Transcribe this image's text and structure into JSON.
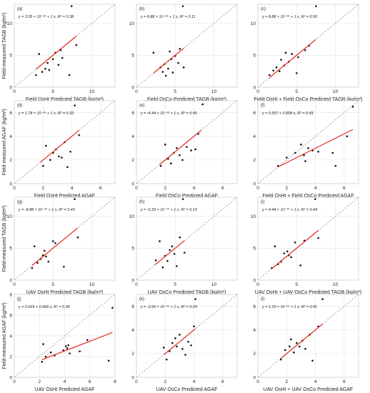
{
  "colors": {
    "points": "#111111",
    "fit": "#e8261c",
    "ref": "#9a9a9a",
    "grid": "#e9e9e9",
    "panel_border": "#cfcfcf"
  },
  "chart_data": [
    {
      "type": "scatter",
      "tag": "(a)",
      "equation": "y = 3.55 × 10⁻¹⁶ + 1 x",
      "r2": "R² = 0.38",
      "xlabel": "Field OsHt Predicted TAGB (kg/m²)",
      "ylabel": "Field-measured TAGB (kg/m²)",
      "xlim": [
        0,
        13
      ],
      "ylim": [
        0,
        13
      ],
      "xticks": [
        0,
        5,
        10
      ],
      "yticks": [
        0,
        5,
        10
      ],
      "points": [
        [
          2.8,
          1.9
        ],
        [
          3.2,
          5.2
        ],
        [
          3.6,
          2.4
        ],
        [
          4.0,
          2.9
        ],
        [
          4.3,
          3.8
        ],
        [
          4.5,
          2.7
        ],
        [
          5.0,
          4.4
        ],
        [
          5.3,
          5.4
        ],
        [
          5.7,
          3.5
        ],
        [
          6.0,
          5.8
        ],
        [
          6.2,
          4.6
        ],
        [
          7.1,
          1.9
        ],
        [
          7.4,
          12.7
        ],
        [
          8.0,
          6.6
        ]
      ],
      "fit": [
        [
          2.8,
          2.8
        ],
        [
          8.0,
          8.0
        ]
      ]
    },
    {
      "type": "scatter",
      "tag": "(b)",
      "equation": "y = 8.88 × 10⁻¹⁶ + 1 x",
      "r2": "R² = 0.11",
      "xlabel": "Field OsCo Predicted TAGB (kg/m²)",
      "ylabel": "",
      "xlim": [
        0,
        13
      ],
      "ylim": [
        0,
        13
      ],
      "xticks": [
        0,
        5,
        10
      ],
      "yticks": [
        0,
        5,
        10
      ],
      "points": [
        [
          2.2,
          5.4
        ],
        [
          3.1,
          3.1
        ],
        [
          3.4,
          2.4
        ],
        [
          3.6,
          3.6
        ],
        [
          3.8,
          1.8
        ],
        [
          4.1,
          2.9
        ],
        [
          4.3,
          5.6
        ],
        [
          4.5,
          4.4
        ],
        [
          4.7,
          2.3
        ],
        [
          5.0,
          4.9
        ],
        [
          5.4,
          3.8
        ],
        [
          5.6,
          6.0
        ],
        [
          6.0,
          12.7
        ],
        [
          6.1,
          3.1
        ]
      ],
      "fit": [
        [
          2.2,
          2.2
        ],
        [
          6.1,
          6.1
        ]
      ]
    },
    {
      "type": "scatter",
      "tag": "(c)",
      "equation": "y = 8.88 × 10⁻¹⁶ + 1 x",
      "r2": "R² = 0.50",
      "xlabel": "Field OsHt + Field OsCo Predicted TAGB (kg/m²)",
      "ylabel": "",
      "xlim": [
        0,
        13
      ],
      "ylim": [
        0,
        13
      ],
      "xticks": [
        0,
        5,
        10
      ],
      "yticks": [
        0,
        5,
        10
      ],
      "points": [
        [
          1.5,
          1.9
        ],
        [
          2.0,
          2.6
        ],
        [
          2.4,
          3.1
        ],
        [
          2.8,
          2.5
        ],
        [
          3.0,
          4.3
        ],
        [
          3.4,
          3.4
        ],
        [
          3.6,
          5.4
        ],
        [
          4.0,
          4.0
        ],
        [
          4.4,
          5.2
        ],
        [
          5.0,
          2.2
        ],
        [
          5.2,
          4.7
        ],
        [
          6.1,
          5.8
        ],
        [
          6.6,
          6.5
        ],
        [
          7.5,
          12.7
        ]
      ],
      "fit": [
        [
          1.5,
          1.5
        ],
        [
          7.5,
          7.5
        ]
      ]
    },
    {
      "type": "scatter",
      "tag": "(d)",
      "equation": "y = 1.78 × 10⁻¹⁵ + 1 x",
      "r2": "R² = 0.33",
      "xlabel": "Field OsHt Predicted AGAF",
      "ylabel": "Field-measured AGAF (kg/m²)",
      "xlim": [
        0,
        7
      ],
      "ylim": [
        0,
        7
      ],
      "xticks": [
        0,
        2,
        4,
        6
      ],
      "yticks": [
        0,
        2,
        4,
        6
      ],
      "points": [
        [
          2.0,
          1.5
        ],
        [
          2.2,
          3.2
        ],
        [
          2.5,
          2.0
        ],
        [
          2.7,
          2.6
        ],
        [
          2.9,
          2.9
        ],
        [
          3.1,
          2.3
        ],
        [
          3.3,
          2.2
        ],
        [
          3.5,
          3.5
        ],
        [
          3.7,
          1.4
        ],
        [
          3.9,
          2.7
        ],
        [
          4.2,
          6.6
        ],
        [
          4.5,
          4.1
        ]
      ],
      "fit": [
        [
          1.8,
          1.8
        ],
        [
          4.5,
          4.5
        ]
      ]
    },
    {
      "type": "scatter",
      "tag": "(e)",
      "equation": "y = -4.44 × 10⁻¹⁶ + 1 x",
      "r2": "R² = 0.45",
      "xlabel": "Field OsCo Predicted AGAF",
      "ylabel": "",
      "xlim": [
        0,
        7
      ],
      "ylim": [
        0,
        7
      ],
      "xticks": [
        0,
        2,
        4,
        6
      ],
      "yticks": [
        0,
        2,
        4,
        6
      ],
      "points": [
        [
          1.7,
          1.5
        ],
        [
          2.0,
          3.3
        ],
        [
          2.2,
          2.1
        ],
        [
          2.4,
          1.7
        ],
        [
          2.6,
          2.6
        ],
        [
          2.8,
          3.0
        ],
        [
          3.0,
          2.4
        ],
        [
          3.2,
          2.0
        ],
        [
          3.5,
          3.1
        ],
        [
          3.8,
          2.8
        ],
        [
          4.1,
          2.9
        ],
        [
          4.3,
          4.2
        ],
        [
          4.6,
          6.7
        ]
      ],
      "fit": [
        [
          1.6,
          1.6
        ],
        [
          4.5,
          4.5
        ]
      ]
    },
    {
      "type": "scatter",
      "tag": "(f)",
      "equation": "y = 0.557 + 0.608 x",
      "r2": "R² = 0.49",
      "xlabel": "Field OsHt + Field OsCo Predicted AGAF",
      "ylabel": "",
      "xlim": [
        0,
        7
      ],
      "ylim": [
        0,
        7
      ],
      "xticks": [
        0,
        2,
        4,
        6
      ],
      "yticks": [
        0,
        2,
        4,
        6
      ],
      "points": [
        [
          1.4,
          1.5
        ],
        [
          2.0,
          2.2
        ],
        [
          2.6,
          2.6
        ],
        [
          3.0,
          3.3
        ],
        [
          3.2,
          2.4
        ],
        [
          3.3,
          1.9
        ],
        [
          3.5,
          3.0
        ],
        [
          3.8,
          2.8
        ],
        [
          4.2,
          2.7
        ],
        [
          5.2,
          2.6
        ],
        [
          5.4,
          1.5
        ],
        [
          6.2,
          4.0
        ],
        [
          6.6,
          6.5
        ]
      ],
      "fit": [
        [
          1.4,
          1.41
        ],
        [
          6.6,
          4.57
        ]
      ]
    },
    {
      "type": "scatter",
      "tag": "(g)",
      "equation": "y = -8.88 × 10⁻¹⁶ + 1 x",
      "r2": "R² = 0.43",
      "xlabel": "UAV OsHt Predicted TAGB (kg/m²)",
      "ylabel": "Field-measured TAGB (kg/m²)",
      "xlim": [
        0,
        13
      ],
      "ylim": [
        0,
        13
      ],
      "xticks": [
        0,
        5,
        10
      ],
      "yticks": [
        0,
        5,
        10
      ],
      "points": [
        [
          2.3,
          1.9
        ],
        [
          2.6,
          5.3
        ],
        [
          3.0,
          2.7
        ],
        [
          3.4,
          3.3
        ],
        [
          3.7,
          3.9
        ],
        [
          3.9,
          4.6
        ],
        [
          4.1,
          3.7
        ],
        [
          4.4,
          2.9
        ],
        [
          5.0,
          6.1
        ],
        [
          5.3,
          5.8
        ],
        [
          6.4,
          2.1
        ],
        [
          7.8,
          12.7
        ],
        [
          8.2,
          6.7
        ]
      ],
      "fit": [
        [
          2.3,
          2.3
        ],
        [
          8.2,
          8.2
        ]
      ]
    },
    {
      "type": "scatter",
      "tag": "(h)",
      "equation": "y = -5.33 × 10⁻¹⁶ + 1 x",
      "r2": "R² = 0.19",
      "xlabel": "UAV OsCo Predicted TAGB (kg/m²)",
      "ylabel": "",
      "xlim": [
        0,
        13
      ],
      "ylim": [
        0,
        13
      ],
      "xticks": [
        0,
        5,
        10
      ],
      "yticks": [
        0,
        5,
        10
      ],
      "points": [
        [
          2.5,
          3.1
        ],
        [
          3.0,
          6.1
        ],
        [
          3.4,
          2.0
        ],
        [
          3.7,
          3.8
        ],
        [
          4.0,
          3.0
        ],
        [
          4.3,
          4.7
        ],
        [
          4.6,
          5.3
        ],
        [
          4.9,
          4.1
        ],
        [
          5.2,
          2.2
        ],
        [
          5.6,
          6.7
        ],
        [
          6.0,
          12.7
        ],
        [
          6.2,
          4.3
        ]
      ],
      "fit": [
        [
          2.4,
          2.4
        ],
        [
          6.2,
          6.2
        ]
      ]
    },
    {
      "type": "scatter",
      "tag": "(i)",
      "equation": "y = 4.44 × 10⁻¹⁶ + 1 x",
      "r2": "R² = 0.44",
      "xlabel": "UAV OsHt + UAV OsCo Predicted TAGB (kg/m²)",
      "ylabel": "",
      "xlim": [
        0,
        13
      ],
      "ylim": [
        0,
        13
      ],
      "xticks": [
        0,
        5,
        10
      ],
      "yticks": [
        0,
        5,
        10
      ],
      "points": [
        [
          1.8,
          1.9
        ],
        [
          2.2,
          5.3
        ],
        [
          2.6,
          2.5
        ],
        [
          3.0,
          2.9
        ],
        [
          3.4,
          4.2
        ],
        [
          3.8,
          4.5
        ],
        [
          4.0,
          3.9
        ],
        [
          4.3,
          3.6
        ],
        [
          4.8,
          5.9
        ],
        [
          5.5,
          2.3
        ],
        [
          6.0,
          6.2
        ],
        [
          7.4,
          12.7
        ],
        [
          7.8,
          6.6
        ]
      ],
      "fit": [
        [
          1.8,
          1.8
        ],
        [
          7.8,
          7.8
        ]
      ]
    },
    {
      "type": "scatter",
      "tag": "(j)",
      "equation": "y = 0.669 + 0.468 x",
      "r2": "R² = 0.38",
      "xlabel": "UAV OsHt Predicted AGAF",
      "ylabel": "Field-measured AGAF (kg/m²)",
      "xlim": [
        0,
        8
      ],
      "ylim": [
        0,
        8
      ],
      "xticks": [
        0,
        2,
        4,
        6,
        8
      ],
      "yticks": [
        0,
        2,
        4,
        6,
        8
      ],
      "points": [
        [
          2.2,
          1.5
        ],
        [
          2.3,
          3.2
        ],
        [
          2.5,
          2.0
        ],
        [
          2.9,
          2.4
        ],
        [
          3.2,
          2.1
        ],
        [
          3.9,
          2.6
        ],
        [
          4.1,
          3.0
        ],
        [
          4.2,
          2.8
        ],
        [
          4.3,
          3.1
        ],
        [
          4.4,
          2.3
        ],
        [
          5.2,
          2.5
        ],
        [
          5.8,
          3.6
        ],
        [
          7.5,
          1.6
        ],
        [
          7.8,
          6.7
        ]
      ],
      "fit": [
        [
          2.2,
          1.7
        ],
        [
          7.8,
          4.32
        ]
      ]
    },
    {
      "type": "scatter",
      "tag": "(k)",
      "equation": "y = -2.66 × 10⁻¹⁵ + 1 x",
      "r2": "R² = 0.24",
      "xlabel": "UAV OsCo Predicted AGAF",
      "ylabel": "",
      "xlim": [
        0,
        7
      ],
      "ylim": [
        0,
        7
      ],
      "xticks": [
        0,
        2,
        4,
        6
      ],
      "yticks": [
        0,
        2,
        4,
        6
      ],
      "points": [
        [
          1.9,
          2.5
        ],
        [
          2.1,
          1.5
        ],
        [
          2.3,
          2.2
        ],
        [
          2.5,
          2.9
        ],
        [
          2.7,
          3.3
        ],
        [
          2.8,
          2.6
        ],
        [
          3.0,
          3.6
        ],
        [
          3.2,
          2.4
        ],
        [
          3.4,
          1.9
        ],
        [
          3.6,
          3.0
        ],
        [
          3.8,
          2.7
        ],
        [
          4.0,
          4.3
        ],
        [
          4.1,
          6.6
        ]
      ],
      "fit": [
        [
          1.9,
          1.9
        ],
        [
          4.1,
          4.1
        ]
      ]
    },
    {
      "type": "scatter",
      "tag": "(l)",
      "equation": "y = 1.33 × 10⁻¹⁵ + 1 x",
      "r2": "R² = 0.41",
      "xlabel": "UAV OsHt + UAV OsCo Predicted AGAF",
      "ylabel": "",
      "xlim": [
        0,
        7
      ],
      "ylim": [
        0,
        7
      ],
      "xticks": [
        0,
        2,
        4,
        6
      ],
      "yticks": [
        0,
        2,
        4,
        6
      ],
      "points": [
        [
          1.6,
          1.5
        ],
        [
          1.9,
          2.3
        ],
        [
          2.2,
          2.6
        ],
        [
          2.3,
          3.2
        ],
        [
          2.5,
          2.1
        ],
        [
          2.7,
          2.9
        ],
        [
          2.9,
          2.6
        ],
        [
          3.1,
          3.1
        ],
        [
          3.3,
          2.4
        ],
        [
          3.6,
          3.6
        ],
        [
          3.8,
          1.4
        ],
        [
          4.2,
          4.3
        ],
        [
          4.5,
          6.6
        ]
      ],
      "fit": [
        [
          1.6,
          1.6
        ],
        [
          4.5,
          4.5
        ]
      ]
    }
  ]
}
